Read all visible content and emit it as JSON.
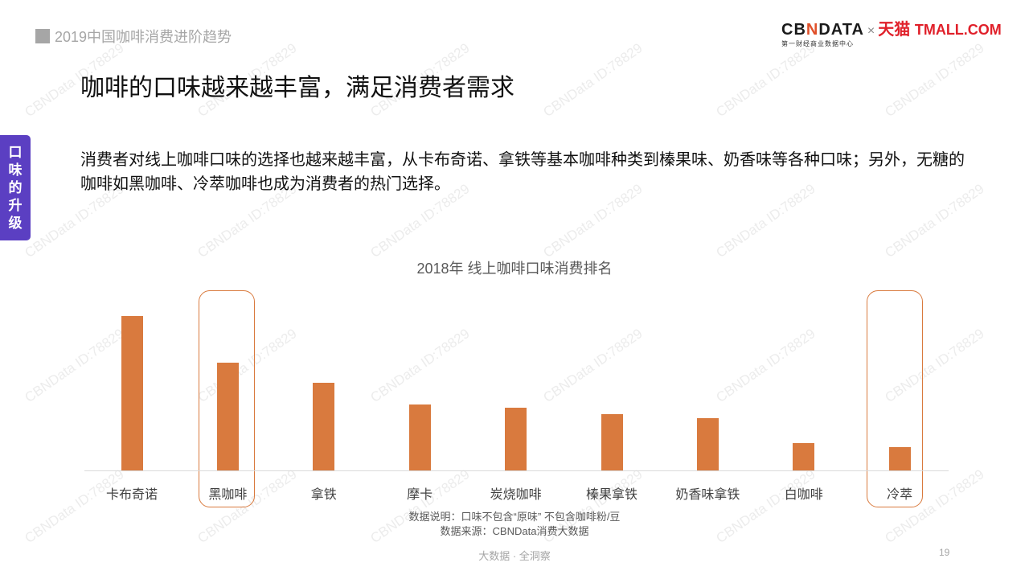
{
  "header": {
    "report_title": "2019中国咖啡消费进阶趋势",
    "logo_cbn_main_1": "CB",
    "logo_cbn_main_n": "N",
    "logo_cbn_main_2": "DATA",
    "logo_cbn_sub": "第一财经商业数据中心",
    "logo_times": "×",
    "logo_tmall_cn": "天猫",
    "logo_tmall_en": "TMALL.COM"
  },
  "page_title": "咖啡的口味越来越丰富，满足消费者需求",
  "side_tab": [
    "口",
    "味",
    "的",
    "升",
    "级"
  ],
  "description": "消费者对线上咖啡口味的选择也越来越丰富，从卡布奇诺、拿铁等基本咖啡种类到榛果味、奶香味等各种口味；另外，无糖的咖啡如黑咖啡、冷萃咖啡也成为消费者的热门选择。",
  "chart_data": {
    "type": "bar",
    "title": "2018年 线上咖啡口味消费排名",
    "xlabel": "",
    "ylabel": "",
    "y_axis_visible": false,
    "grid": false,
    "legend": null,
    "categories": [
      "卡布奇诺",
      "黑咖啡",
      "拿铁",
      "摩卡",
      "炭烧咖啡",
      "榛果拿铁",
      "奶香味拿铁",
      "白咖啡",
      "冷萃"
    ],
    "values": [
      192,
      134,
      109,
      82,
      78,
      70,
      65,
      34,
      29
    ],
    "value_unit": "relative bar height (px, no axis shown)",
    "ylim": [
      0,
      205
    ],
    "highlighted": [
      "黑咖啡",
      "冷萃"
    ],
    "bar_color": "#d97a3e"
  },
  "notes": {
    "data_note": "数据说明：口味不包含“原味” 不包含咖啡粉/豆",
    "data_source": "数据来源：CBNData消费大数据"
  },
  "footer": {
    "slogan": "大数据 · 全洞察",
    "page_number": "19"
  },
  "watermark": "CBNData ID:78829",
  "colors": {
    "accent_purple": "#5b3fc2",
    "bar_orange": "#d97a3e",
    "tmall_red": "#e0202a"
  }
}
